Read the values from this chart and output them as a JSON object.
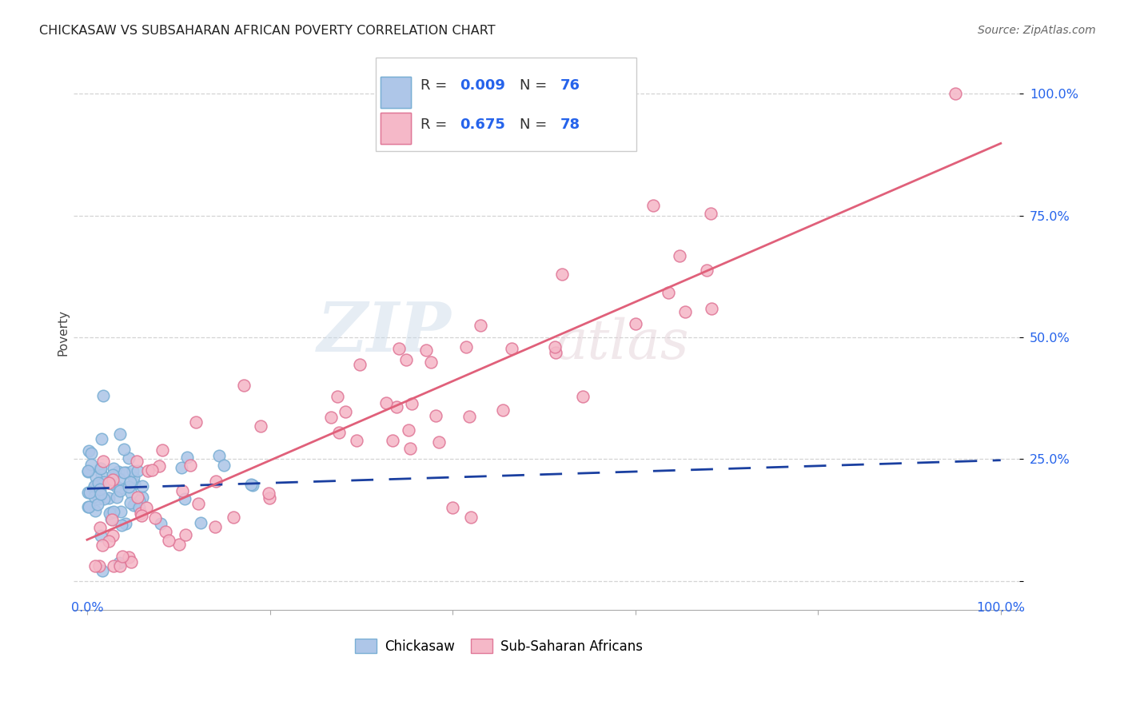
{
  "title": "CHICKASAW VS SUBSAHARAN AFRICAN POVERTY CORRELATION CHART",
  "source": "Source: ZipAtlas.com",
  "ylabel": "Poverty",
  "chickasaw_color": "#aec6e8",
  "chickasaw_edge": "#7aafd4",
  "subsaharan_color": "#f5b8c8",
  "subsaharan_edge": "#e07898",
  "trend_chickasaw_color": "#1a3fa0",
  "trend_subsaharan_color": "#e0607a",
  "background": "#ffffff",
  "grid_color": "#d0d0d0",
  "ytick_color": "#2563eb",
  "R_label_color": "#2563eb",
  "legend_R_text_color": "#333333"
}
